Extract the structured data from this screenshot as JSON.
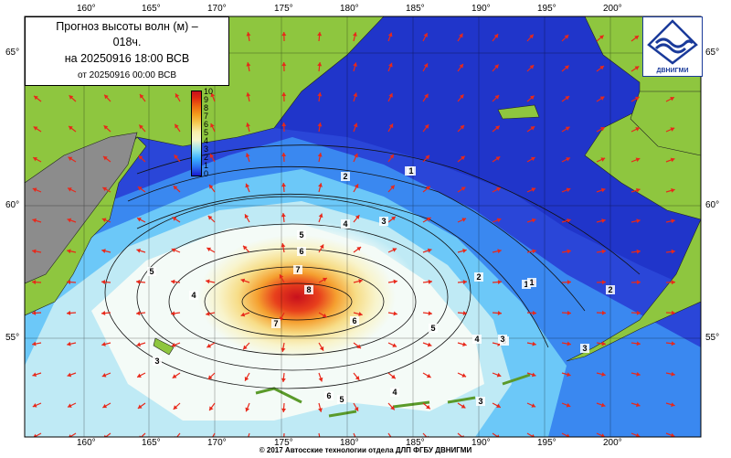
{
  "title": {
    "line1": "Прогноз высоты волн (м) –",
    "line1b": "018ч.",
    "line2": "на 20250916 18:00 ВСВ",
    "line3": "от 20250916 00:00 ВСВ"
  },
  "colorbar": {
    "labels": [
      "10",
      "9",
      "8",
      "7",
      "6",
      "5",
      "4",
      "3",
      "2",
      "1",
      "0"
    ]
  },
  "logo": {
    "text": "ДВНИГМИ"
  },
  "axes": {
    "lon_ticks": [
      "160°",
      "165°",
      "170°",
      "175°",
      "180°",
      "185°",
      "190°",
      "195°",
      "200°"
    ],
    "lat_ticks": [
      "65°",
      "60°",
      "55°"
    ]
  },
  "contour_labels": [
    "1",
    "2",
    "3",
    "4",
    "5",
    "6",
    "7",
    "8",
    "7",
    "6",
    "5",
    "4",
    "3",
    "2",
    "1",
    "5",
    "4",
    "3",
    "6",
    "5",
    "4",
    "3",
    "2",
    "1",
    "1",
    "3",
    "3"
  ],
  "footer": "© 2017 Автосские технологии отдела ДЛП ФГБУ ДВНИГМИ",
  "colors": {
    "land": "#8ec63f",
    "land_grey": "#8c8c8c",
    "deep_blue": "#1e32c8",
    "max_red": "#c8101c",
    "arrow": "#e8281a"
  }
}
